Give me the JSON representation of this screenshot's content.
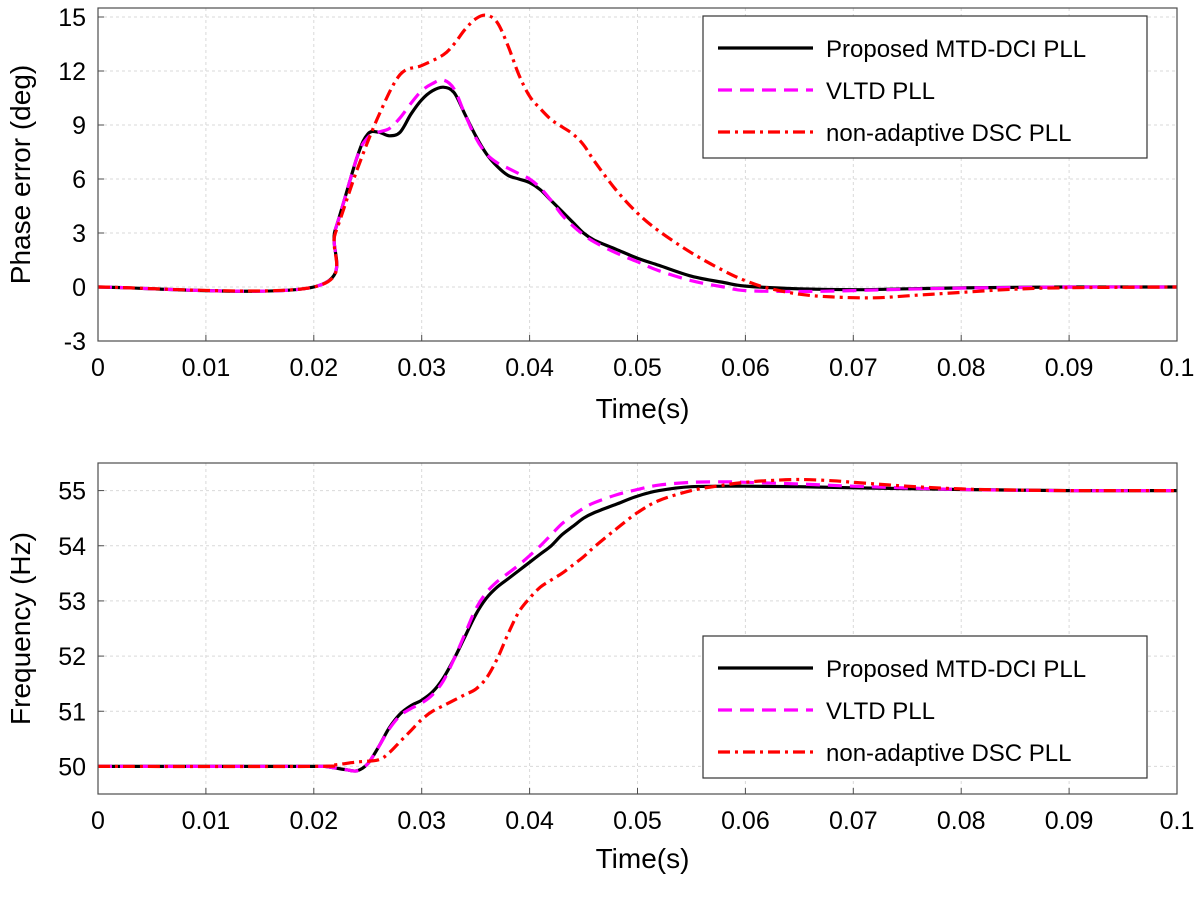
{
  "chart_data": [
    {
      "type": "line",
      "xlabel": "Time(s)",
      "ylabel": "Phase error (deg)",
      "xlim": [
        0,
        0.1
      ],
      "ylim": [
        -3,
        15.5
      ],
      "xticks": [
        0,
        0.01,
        0.02,
        0.03,
        0.04,
        0.05,
        0.06,
        0.07,
        0.08,
        0.09,
        0.1
      ],
      "xtick_labels": [
        "0",
        "0.01",
        "0.02",
        "0.03",
        "0.04",
        "0.05",
        "0.06",
        "0.07",
        "0.08",
        "0.09",
        "0.1"
      ],
      "yticks": [
        -3,
        0,
        3,
        6,
        9,
        12,
        15
      ],
      "ytick_labels": [
        "-3",
        "0",
        "3",
        "6",
        "9",
        "12",
        "15"
      ],
      "grid": true,
      "legend_position": "top-right",
      "series": [
        {
          "name": "Proposed MTD-DCI PLL",
          "color": "#000000",
          "style": "solid",
          "x": [
            0,
            0.02,
            0.022,
            0.024,
            0.025,
            0.026,
            0.027,
            0.028,
            0.029,
            0.03,
            0.031,
            0.032,
            0.033,
            0.034,
            0.035,
            0.036,
            0.037,
            0.038,
            0.039,
            0.04,
            0.041,
            0.042,
            0.043,
            0.044,
            0.045,
            0.046,
            0.048,
            0.05,
            0.052,
            0.055,
            0.058,
            0.06,
            0.065,
            0.07,
            0.075,
            0.08,
            0.085,
            0.09,
            0.1
          ],
          "y": [
            0,
            0,
            3.2,
            7.2,
            8.5,
            8.6,
            8.4,
            8.6,
            9.6,
            10.4,
            10.9,
            11.1,
            10.8,
            9.6,
            8.4,
            7.4,
            6.7,
            6.2,
            6.0,
            5.8,
            5.4,
            4.8,
            4.2,
            3.6,
            3.0,
            2.6,
            2.1,
            1.6,
            1.2,
            0.6,
            0.25,
            0.05,
            -0.1,
            -0.15,
            -0.1,
            -0.05,
            -0.02,
            0,
            0
          ]
        },
        {
          "name": "VLTD PLL",
          "color": "#ff00ff",
          "style": "dashed",
          "x": [
            0,
            0.02,
            0.022,
            0.024,
            0.025,
            0.026,
            0.027,
            0.028,
            0.029,
            0.03,
            0.031,
            0.032,
            0.033,
            0.034,
            0.035,
            0.036,
            0.037,
            0.038,
            0.039,
            0.04,
            0.041,
            0.042,
            0.043,
            0.044,
            0.045,
            0.046,
            0.048,
            0.05,
            0.052,
            0.055,
            0.058,
            0.06,
            0.065,
            0.07,
            0.075,
            0.08,
            0.085,
            0.09,
            0.1
          ],
          "y": [
            0,
            0,
            3.2,
            7.2,
            8.3,
            8.6,
            8.8,
            9.4,
            10.2,
            10.9,
            11.3,
            11.5,
            11.0,
            9.6,
            8.3,
            7.4,
            6.9,
            6.6,
            6.3,
            6.0,
            5.5,
            4.8,
            4.0,
            3.4,
            2.9,
            2.5,
            1.9,
            1.4,
            0.9,
            0.35,
            0.0,
            -0.2,
            -0.25,
            -0.2,
            -0.12,
            -0.06,
            -0.03,
            0,
            0
          ]
        },
        {
          "name": "non-adaptive DSC PLL",
          "color": "#ff0000",
          "style": "dashdot",
          "x": [
            0,
            0.02,
            0.022,
            0.024,
            0.026,
            0.028,
            0.03,
            0.032,
            0.033,
            0.034,
            0.035,
            0.036,
            0.037,
            0.038,
            0.039,
            0.04,
            0.041,
            0.042,
            0.043,
            0.044,
            0.045,
            0.046,
            0.048,
            0.05,
            0.052,
            0.055,
            0.058,
            0.06,
            0.062,
            0.065,
            0.068,
            0.072,
            0.076,
            0.08,
            0.085,
            0.09,
            0.1
          ],
          "y": [
            0,
            0,
            3.0,
            6.5,
            9.5,
            11.8,
            12.3,
            12.9,
            13.5,
            14.3,
            14.9,
            15.1,
            14.7,
            13.4,
            11.8,
            10.6,
            9.9,
            9.3,
            8.9,
            8.5,
            7.9,
            7.0,
            5.4,
            4.1,
            3.1,
            1.9,
            0.9,
            0.35,
            -0.05,
            -0.4,
            -0.55,
            -0.6,
            -0.45,
            -0.3,
            -0.12,
            -0.04,
            0
          ]
        }
      ]
    },
    {
      "type": "line",
      "xlabel": "Time(s)",
      "ylabel": "Frequency (Hz)",
      "xlim": [
        0,
        0.1
      ],
      "ylim": [
        49.5,
        55.5
      ],
      "xticks": [
        0,
        0.01,
        0.02,
        0.03,
        0.04,
        0.05,
        0.06,
        0.07,
        0.08,
        0.09,
        0.1
      ],
      "xtick_labels": [
        "0",
        "0.01",
        "0.02",
        "0.03",
        "0.04",
        "0.05",
        "0.06",
        "0.07",
        "0.08",
        "0.09",
        "0.1"
      ],
      "yticks": [
        50,
        51,
        52,
        53,
        54,
        55
      ],
      "ytick_labels": [
        "50",
        "51",
        "52",
        "53",
        "54",
        "55"
      ],
      "grid": true,
      "legend_position": "bottom-right",
      "series": [
        {
          "name": "Proposed MTD-DCI PLL",
          "color": "#000000",
          "style": "solid",
          "x": [
            0,
            0.02,
            0.021,
            0.022,
            0.023,
            0.024,
            0.025,
            0.026,
            0.027,
            0.028,
            0.029,
            0.03,
            0.031,
            0.032,
            0.033,
            0.034,
            0.035,
            0.036,
            0.037,
            0.038,
            0.039,
            0.04,
            0.041,
            0.042,
            0.043,
            0.044,
            0.045,
            0.046,
            0.048,
            0.05,
            0.052,
            0.055,
            0.06,
            0.065,
            0.07,
            0.08,
            0.09,
            0.1
          ],
          "y": [
            50,
            50,
            50.0,
            49.97,
            49.94,
            49.92,
            50.05,
            50.35,
            50.7,
            50.95,
            51.1,
            51.2,
            51.35,
            51.6,
            51.95,
            52.35,
            52.75,
            53.05,
            53.25,
            53.4,
            53.55,
            53.7,
            53.85,
            54.0,
            54.2,
            54.35,
            54.5,
            54.6,
            54.75,
            54.9,
            55.0,
            55.07,
            55.08,
            55.07,
            55.05,
            55.02,
            55.0,
            55.0
          ]
        },
        {
          "name": "VLTD PLL",
          "color": "#ff00ff",
          "style": "dashed",
          "x": [
            0,
            0.02,
            0.021,
            0.022,
            0.023,
            0.024,
            0.025,
            0.026,
            0.027,
            0.028,
            0.029,
            0.03,
            0.031,
            0.032,
            0.033,
            0.034,
            0.035,
            0.036,
            0.037,
            0.038,
            0.039,
            0.04,
            0.041,
            0.042,
            0.043,
            0.044,
            0.045,
            0.046,
            0.048,
            0.05,
            0.052,
            0.055,
            0.058,
            0.06,
            0.065,
            0.07,
            0.08,
            0.09,
            0.1
          ],
          "y": [
            50,
            50,
            50.0,
            49.97,
            49.94,
            49.92,
            50.05,
            50.35,
            50.68,
            50.92,
            51.05,
            51.15,
            51.3,
            51.55,
            51.95,
            52.4,
            52.85,
            53.15,
            53.35,
            53.5,
            53.65,
            53.82,
            54.0,
            54.2,
            54.4,
            54.55,
            54.68,
            54.78,
            54.92,
            55.02,
            55.1,
            55.15,
            55.16,
            55.15,
            55.12,
            55.08,
            55.02,
            55.0,
            55.0
          ]
        },
        {
          "name": "non-adaptive DSC PLL",
          "color": "#ff0000",
          "style": "dashdot",
          "x": [
            0,
            0.02,
            0.022,
            0.024,
            0.026,
            0.027,
            0.028,
            0.029,
            0.03,
            0.031,
            0.032,
            0.033,
            0.034,
            0.035,
            0.036,
            0.037,
            0.038,
            0.039,
            0.04,
            0.041,
            0.042,
            0.043,
            0.044,
            0.045,
            0.046,
            0.048,
            0.05,
            0.052,
            0.055,
            0.058,
            0.06,
            0.062,
            0.065,
            0.068,
            0.07,
            0.075,
            0.08,
            0.085,
            0.09,
            0.1
          ],
          "y": [
            50,
            50,
            50.03,
            50.08,
            50.12,
            50.25,
            50.45,
            50.65,
            50.85,
            51.0,
            51.1,
            51.2,
            51.3,
            51.4,
            51.6,
            51.95,
            52.4,
            52.8,
            53.05,
            53.25,
            53.38,
            53.5,
            53.65,
            53.8,
            53.98,
            54.3,
            54.6,
            54.82,
            55.0,
            55.1,
            55.15,
            55.18,
            55.2,
            55.18,
            55.15,
            55.08,
            55.03,
            55.01,
            55.0,
            55.0
          ]
        }
      ]
    }
  ]
}
